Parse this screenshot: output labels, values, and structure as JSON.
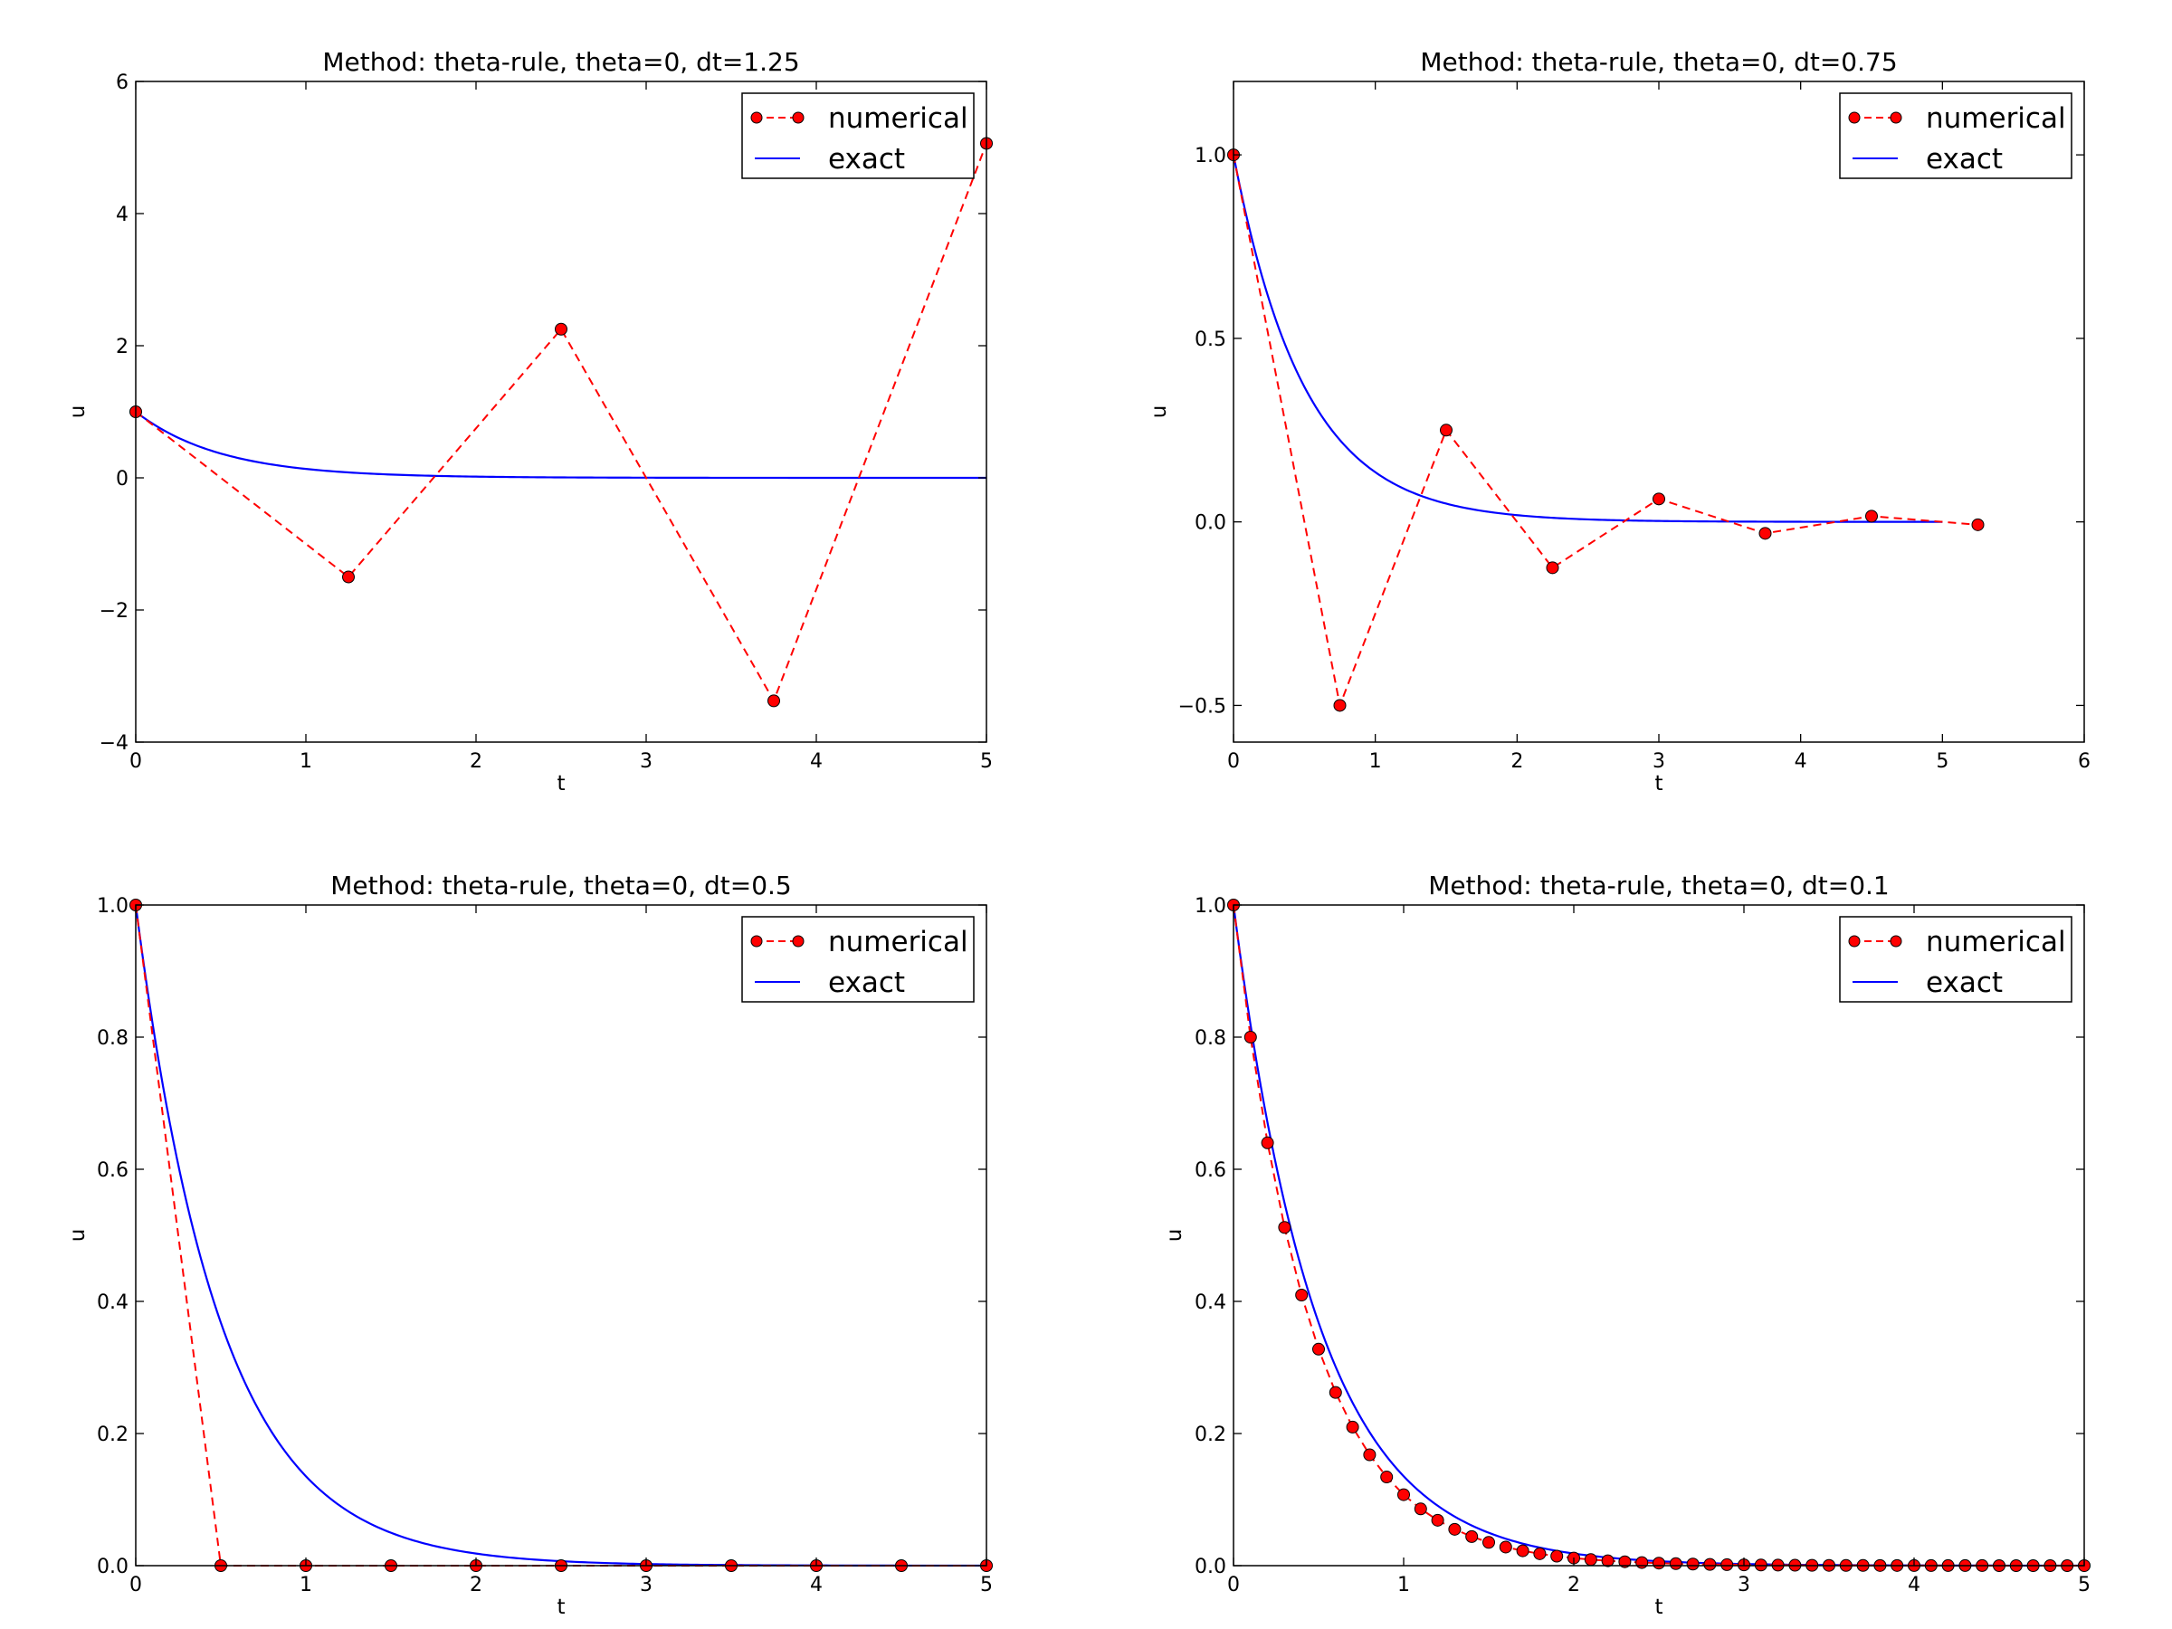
{
  "chart_data": [
    {
      "type": "line",
      "title": "Method: theta-rule, theta=0, dt=1.25",
      "xlabel": "t",
      "ylabel": "u",
      "xlim": [
        0,
        5
      ],
      "ylim": [
        -4,
        6
      ],
      "xticks": [
        "0",
        "1",
        "2",
        "3",
        "4",
        "5"
      ],
      "yticks": [
        "−4",
        "−2",
        "0",
        "2",
        "4",
        "6"
      ],
      "xtick_values": [
        0,
        1,
        2,
        3,
        4,
        5
      ],
      "ytick_values": [
        -4,
        -2,
        0,
        2,
        4,
        6
      ],
      "legend_position": "top-right",
      "series": [
        {
          "name": "numerical",
          "style": "red dashed line with circle markers",
          "color": "#ff0000",
          "x": [
            0,
            1.25,
            2.5,
            3.75,
            5.0
          ],
          "y": [
            1.0,
            -1.5,
            2.25,
            -3.375,
            5.0625
          ]
        },
        {
          "name": "exact",
          "style": "solid blue line",
          "color": "#0000ff",
          "function": "exp(-2t)",
          "x_range": [
            0,
            5
          ]
        }
      ]
    },
    {
      "type": "line",
      "title": "Method: theta-rule, theta=0, dt=0.75",
      "xlabel": "t",
      "ylabel": "u",
      "xlim": [
        0,
        6
      ],
      "ylim": [
        -0.6,
        1.2
      ],
      "xticks": [
        "0",
        "1",
        "2",
        "3",
        "4",
        "5",
        "6"
      ],
      "yticks": [
        "−0.5",
        "0.0",
        "0.5",
        "1.0"
      ],
      "xtick_values": [
        0,
        1,
        2,
        3,
        4,
        5,
        6
      ],
      "ytick_values": [
        -0.5,
        0,
        0.5,
        1.0
      ],
      "legend_position": "top-right",
      "series": [
        {
          "name": "numerical",
          "style": "red dashed line with circle markers",
          "color": "#ff0000",
          "x": [
            0,
            0.75,
            1.5,
            2.25,
            3.0,
            3.75,
            4.5,
            5.25
          ],
          "y": [
            1.0,
            -0.5,
            0.25,
            -0.125,
            0.0625,
            -0.03125,
            0.015625,
            -0.0078
          ]
        },
        {
          "name": "exact",
          "style": "solid blue line",
          "color": "#0000ff",
          "function": "exp(-2t)",
          "x_range": [
            0,
            5
          ]
        }
      ]
    },
    {
      "type": "line",
      "title": "Method: theta-rule, theta=0, dt=0.5",
      "xlabel": "t",
      "ylabel": "u",
      "xlim": [
        0,
        5
      ],
      "ylim": [
        0,
        1.0
      ],
      "xticks": [
        "0",
        "1",
        "2",
        "3",
        "4",
        "5"
      ],
      "yticks": [
        "0.0",
        "0.2",
        "0.4",
        "0.6",
        "0.8",
        "1.0"
      ],
      "xtick_values": [
        0,
        1,
        2,
        3,
        4,
        5
      ],
      "ytick_values": [
        0,
        0.2,
        0.4,
        0.6,
        0.8,
        1.0
      ],
      "legend_position": "top-right",
      "series": [
        {
          "name": "numerical",
          "style": "red dashed line with circle markers",
          "color": "#ff0000",
          "x": [
            0,
            0.5,
            1.0,
            1.5,
            2.0,
            2.5,
            3.0,
            3.5,
            4.0,
            4.5,
            5.0
          ],
          "y": [
            1.0,
            0,
            0,
            0,
            0,
            0,
            0,
            0,
            0,
            0,
            0
          ]
        },
        {
          "name": "exact",
          "style": "solid blue line",
          "color": "#0000ff",
          "function": "exp(-2t)",
          "x_range": [
            0,
            5
          ]
        }
      ]
    },
    {
      "type": "line",
      "title": "Method: theta-rule, theta=0, dt=0.1",
      "xlabel": "t",
      "ylabel": "u",
      "xlim": [
        0,
        5
      ],
      "ylim": [
        0,
        1.0
      ],
      "xticks": [
        "0",
        "1",
        "2",
        "3",
        "4",
        "5"
      ],
      "yticks": [
        "0.0",
        "0.2",
        "0.4",
        "0.6",
        "0.8",
        "1.0"
      ],
      "xtick_values": [
        0,
        1,
        2,
        3,
        4,
        5
      ],
      "ytick_values": [
        0,
        0.2,
        0.4,
        0.6,
        0.8,
        1.0
      ],
      "legend_position": "top-right",
      "series": [
        {
          "name": "numerical",
          "style": "red dashed line with circle markers",
          "color": "#ff0000",
          "x": [
            0,
            0.1,
            0.2,
            0.3,
            0.4,
            0.5,
            0.6,
            0.7,
            0.8,
            0.9,
            1.0,
            1.1,
            1.2,
            1.3,
            1.4,
            1.5,
            1.6,
            1.7,
            1.8,
            1.9,
            2.0,
            2.1,
            2.2,
            2.3,
            2.4,
            2.5,
            2.6,
            2.7,
            2.8,
            2.9,
            3.0,
            3.1,
            3.2,
            3.3,
            3.4,
            3.5,
            3.6,
            3.7,
            3.8,
            3.9,
            4.0,
            4.1,
            4.2,
            4.3,
            4.4,
            4.5,
            4.6,
            4.7,
            4.8,
            4.9,
            5.0
          ],
          "y": [
            1.0,
            0.8,
            0.64,
            0.512,
            0.4096,
            0.3277,
            0.2621,
            0.2097,
            0.1678,
            0.1342,
            0.1074,
            0.0859,
            0.0687,
            0.055,
            0.044,
            0.0352,
            0.0281,
            0.0225,
            0.018,
            0.0144,
            0.0115,
            0.0092,
            0.0074,
            0.0059,
            0.0047,
            0.0038,
            0.003,
            0.0024,
            0.0019,
            0.0015,
            0.0012,
            0.001,
            0.0008,
            0.0006,
            0.0005,
            0.0004,
            0.0003,
            0.0003,
            0.0002,
            0.0002,
            0.0001,
            0.0001,
            0.0001,
            0.0001,
            0.0001,
            0,
            0,
            0,
            0,
            0,
            0
          ]
        },
        {
          "name": "exact",
          "style": "solid blue line",
          "color": "#0000ff",
          "function": "exp(-2t)",
          "x_range": [
            0,
            5
          ]
        }
      ]
    }
  ]
}
